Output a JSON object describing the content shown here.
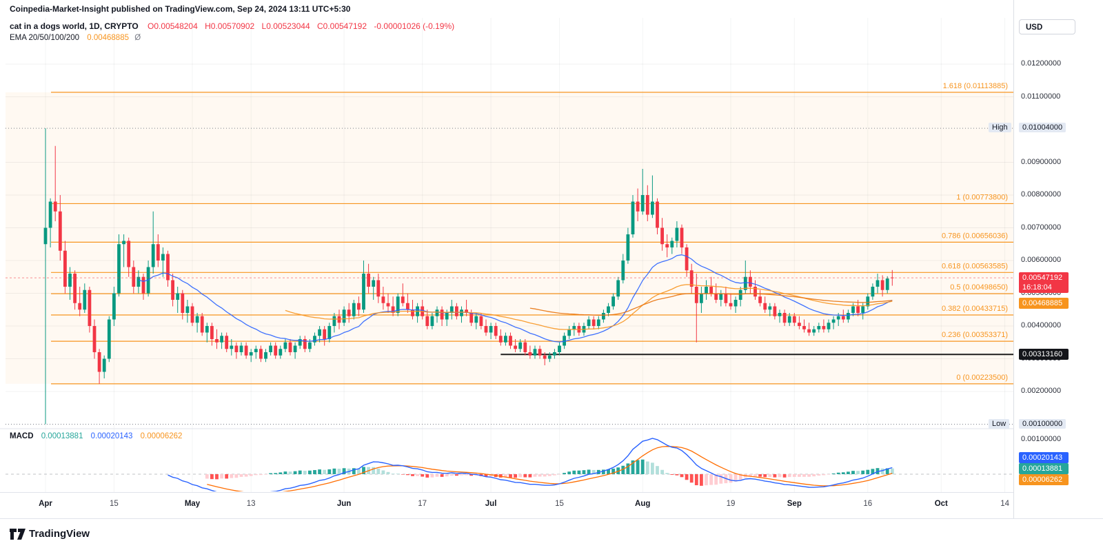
{
  "header": {
    "title": "Coinpedia-Market-Insight published on TradingView.com, Sep 24, 2024 13:11 UTC+5:30"
  },
  "legend": {
    "symbol": "cat in a dogs world, 1D, CRYPTO",
    "ohlc": [
      "O0.00548204",
      "H0.00570902",
      "L0.00523044",
      "C0.00547192"
    ],
    "change": "-0.00001026 (-0.19%)",
    "ema_label": "EMA 20/50/100/200",
    "ema_value": "0.00468885",
    "ema_suffix": "Ø"
  },
  "macd_legend": {
    "label": "MACD",
    "hist": "0.00013881",
    "macd": "0.00020143",
    "signal": "0.00006262"
  },
  "axis": {
    "currency": "USD",
    "y_ticks": [
      {
        "label": "0.01200000",
        "price": 0.012
      },
      {
        "label": "0.01100000",
        "price": 0.011
      },
      {
        "label": "0.00900000",
        "price": 0.009
      },
      {
        "label": "0.00800000",
        "price": 0.008
      },
      {
        "label": "0.00700000",
        "price": 0.007
      },
      {
        "label": "0.00600000",
        "price": 0.006
      },
      {
        "label": "0.00500000",
        "price": 0.005
      },
      {
        "label": "0.00400000",
        "price": 0.004
      },
      {
        "label": "0.00300000",
        "price": 0.003
      },
      {
        "label": "0.00200000",
        "price": 0.002
      }
    ],
    "macd_tick": {
      "label": "0.00100000"
    },
    "high": {
      "label": "High",
      "value": "0.01004000",
      "price": 0.01004
    },
    "low": {
      "label": "Low",
      "value": "0.00100000",
      "price": 0.001
    },
    "badges": {
      "price": {
        "value": "0.00547192",
        "countdown": "16:18:04",
        "color": "#f23645",
        "price": 0.00547192
      },
      "ema": {
        "value": "0.00468885",
        "color": "#f7941e",
        "price": 0.00468885
      },
      "support": {
        "value": "0.00313160",
        "color": "#14151a",
        "price": 0.0031316
      },
      "macd": [
        {
          "value": "0.00020143",
          "color": "#2962ff"
        },
        {
          "value": "0.00013881",
          "color": "#26a69a"
        },
        {
          "value": "0.00006262",
          "color": "#f7941e"
        }
      ]
    }
  },
  "footer": {
    "brand": "TradingView"
  },
  "chart_data": {
    "type": "candlestick",
    "title": "cat in a dogs world, 1D, CRYPTO (CAT/USD)",
    "price_unit": 1e-05,
    "colors": {
      "up": "#089981",
      "down": "#f23645",
      "fib": "#f7941e",
      "fib_fill": "rgba(247,147,30,0.06)",
      "support": "#1c1c1c",
      "price_line": "#f23645",
      "high_low": "#787b86"
    },
    "ohlc": [
      [
        650,
        1004,
        100,
        700
      ],
      [
        700,
        790,
        640,
        780
      ],
      [
        780,
        950,
        720,
        750
      ],
      [
        750,
        800,
        600,
        630
      ],
      [
        630,
        660,
        500,
        520
      ],
      [
        520,
        580,
        480,
        560
      ],
      [
        560,
        570,
        450,
        470
      ],
      [
        470,
        520,
        430,
        450
      ],
      [
        450,
        530,
        440,
        510
      ],
      [
        510,
        520,
        380,
        400
      ],
      [
        400,
        420,
        300,
        320
      ],
      [
        320,
        330,
        223,
        260
      ],
      [
        260,
        310,
        240,
        300
      ],
      [
        300,
        430,
        290,
        420
      ],
      [
        420,
        520,
        400,
        500
      ],
      [
        500,
        680,
        490,
        650
      ],
      [
        650,
        680,
        580,
        660
      ],
      [
        660,
        670,
        550,
        580
      ],
      [
        580,
        600,
        500,
        520
      ],
      [
        520,
        570,
        500,
        550
      ],
      [
        550,
        560,
        480,
        500
      ],
      [
        500,
        600,
        490,
        580
      ],
      [
        580,
        750,
        560,
        650
      ],
      [
        650,
        680,
        580,
        600
      ],
      [
        600,
        640,
        550,
        620
      ],
      [
        620,
        630,
        520,
        540
      ],
      [
        540,
        560,
        460,
        480
      ],
      [
        480,
        520,
        440,
        500
      ],
      [
        500,
        510,
        420,
        440
      ],
      [
        440,
        480,
        410,
        460
      ],
      [
        460,
        470,
        400,
        410
      ],
      [
        410,
        440,
        380,
        430
      ],
      [
        430,
        440,
        370,
        380
      ],
      [
        380,
        410,
        350,
        400
      ],
      [
        400,
        410,
        340,
        360
      ],
      [
        360,
        390,
        330,
        350
      ],
      [
        350,
        380,
        330,
        370
      ],
      [
        370,
        380,
        320,
        330
      ],
      [
        330,
        360,
        310,
        340
      ],
      [
        340,
        350,
        300,
        320
      ],
      [
        320,
        350,
        310,
        340
      ],
      [
        340,
        350,
        300,
        310
      ],
      [
        310,
        330,
        290,
        320
      ],
      [
        320,
        340,
        300,
        330
      ],
      [
        330,
        340,
        290,
        300
      ],
      [
        300,
        330,
        290,
        320
      ],
      [
        320,
        350,
        310,
        340
      ],
      [
        340,
        350,
        300,
        310
      ],
      [
        310,
        340,
        300,
        330
      ],
      [
        330,
        360,
        320,
        350
      ],
      [
        350,
        360,
        310,
        320
      ],
      [
        320,
        350,
        300,
        340
      ],
      [
        340,
        370,
        330,
        360
      ],
      [
        360,
        370,
        320,
        330
      ],
      [
        330,
        360,
        320,
        350
      ],
      [
        350,
        380,
        340,
        370
      ],
      [
        370,
        400,
        350,
        390
      ],
      [
        390,
        400,
        340,
        360
      ],
      [
        360,
        410,
        350,
        400
      ],
      [
        400,
        440,
        380,
        430
      ],
      [
        430,
        450,
        390,
        410
      ],
      [
        410,
        460,
        400,
        450
      ],
      [
        450,
        470,
        410,
        430
      ],
      [
        430,
        480,
        420,
        470
      ],
      [
        470,
        490,
        430,
        450
      ],
      [
        450,
        600,
        440,
        560
      ],
      [
        560,
        590,
        500,
        520
      ],
      [
        520,
        550,
        480,
        540
      ],
      [
        540,
        560,
        470,
        490
      ],
      [
        490,
        520,
        450,
        470
      ],
      [
        470,
        500,
        440,
        460
      ],
      [
        460,
        490,
        430,
        440
      ],
      [
        440,
        500,
        430,
        490
      ],
      [
        490,
        530,
        460,
        470
      ],
      [
        470,
        500,
        440,
        450
      ],
      [
        450,
        480,
        420,
        430
      ],
      [
        430,
        470,
        410,
        460
      ],
      [
        460,
        480,
        420,
        430
      ],
      [
        430,
        450,
        390,
        400
      ],
      [
        400,
        440,
        390,
        430
      ],
      [
        430,
        460,
        410,
        450
      ],
      [
        450,
        460,
        400,
        420
      ],
      [
        420,
        450,
        400,
        440
      ],
      [
        440,
        480,
        420,
        460
      ],
      [
        460,
        470,
        420,
        430
      ],
      [
        430,
        460,
        410,
        450
      ],
      [
        450,
        480,
        430,
        440
      ],
      [
        440,
        450,
        400,
        410
      ],
      [
        410,
        440,
        390,
        430
      ],
      [
        430,
        440,
        390,
        400
      ],
      [
        400,
        420,
        370,
        380
      ],
      [
        380,
        410,
        360,
        400
      ],
      [
        400,
        410,
        360,
        370
      ],
      [
        370,
        390,
        340,
        350
      ],
      [
        350,
        380,
        340,
        370
      ],
      [
        370,
        380,
        330,
        340
      ],
      [
        340,
        360,
        320,
        330
      ],
      [
        330,
        360,
        320,
        350
      ],
      [
        350,
        360,
        310,
        320
      ],
      [
        320,
        340,
        300,
        310
      ],
      [
        310,
        340,
        300,
        330
      ],
      [
        330,
        340,
        300,
        310
      ],
      [
        310,
        320,
        280,
        300
      ],
      [
        300,
        320,
        290,
        310
      ],
      [
        310,
        330,
        300,
        320
      ],
      [
        320,
        350,
        310,
        340
      ],
      [
        340,
        380,
        330,
        370
      ],
      [
        370,
        400,
        360,
        390
      ],
      [
        390,
        410,
        370,
        400
      ],
      [
        400,
        410,
        370,
        380
      ],
      [
        380,
        410,
        370,
        400
      ],
      [
        400,
        430,
        390,
        420
      ],
      [
        420,
        430,
        390,
        400
      ],
      [
        400,
        430,
        390,
        420
      ],
      [
        420,
        450,
        410,
        440
      ],
      [
        440,
        470,
        430,
        460
      ],
      [
        460,
        500,
        450,
        490
      ],
      [
        490,
        550,
        480,
        540
      ],
      [
        540,
        620,
        530,
        600
      ],
      [
        600,
        700,
        590,
        680
      ],
      [
        680,
        800,
        670,
        780
      ],
      [
        780,
        820,
        720,
        750
      ],
      [
        750,
        880,
        740,
        800
      ],
      [
        800,
        830,
        720,
        740
      ],
      [
        740,
        860,
        730,
        780
      ],
      [
        780,
        790,
        680,
        700
      ],
      [
        700,
        730,
        630,
        650
      ],
      [
        650,
        680,
        610,
        640
      ],
      [
        640,
        670,
        620,
        660
      ],
      [
        660,
        720,
        640,
        700
      ],
      [
        700,
        710,
        620,
        640
      ],
      [
        640,
        650,
        550,
        570
      ],
      [
        570,
        590,
        500,
        520
      ],
      [
        520,
        560,
        350,
        470
      ],
      [
        470,
        520,
        440,
        500
      ],
      [
        500,
        540,
        480,
        520
      ],
      [
        520,
        550,
        490,
        500
      ],
      [
        500,
        530,
        470,
        480
      ],
      [
        480,
        510,
        460,
        500
      ],
      [
        500,
        520,
        460,
        470
      ],
      [
        470,
        500,
        450,
        460
      ],
      [
        460,
        490,
        440,
        480
      ],
      [
        480,
        520,
        460,
        510
      ],
      [
        510,
        600,
        500,
        550
      ],
      [
        550,
        570,
        500,
        520
      ],
      [
        520,
        540,
        480,
        490
      ],
      [
        490,
        510,
        460,
        470
      ],
      [
        470,
        490,
        440,
        450
      ],
      [
        450,
        470,
        430,
        460
      ],
      [
        460,
        470,
        420,
        430
      ],
      [
        430,
        450,
        410,
        440
      ],
      [
        440,
        450,
        400,
        410
      ],
      [
        410,
        440,
        400,
        430
      ],
      [
        430,
        440,
        400,
        410
      ],
      [
        410,
        430,
        390,
        400
      ],
      [
        400,
        420,
        380,
        390
      ],
      [
        390,
        410,
        370,
        380
      ],
      [
        380,
        400,
        370,
        390
      ],
      [
        390,
        410,
        380,
        400
      ],
      [
        400,
        420,
        380,
        390
      ],
      [
        390,
        420,
        380,
        410
      ],
      [
        410,
        430,
        390,
        420
      ],
      [
        420,
        440,
        400,
        430
      ],
      [
        430,
        450,
        410,
        420
      ],
      [
        420,
        450,
        410,
        440
      ],
      [
        440,
        470,
        430,
        460
      ],
      [
        460,
        480,
        430,
        440
      ],
      [
        440,
        470,
        420,
        460
      ],
      [
        460,
        500,
        450,
        490
      ],
      [
        490,
        530,
        480,
        520
      ],
      [
        520,
        560,
        500,
        540
      ],
      [
        540,
        555,
        490,
        510
      ],
      [
        510,
        552,
        500,
        545
      ],
      [
        548.204,
        570.902,
        523.044,
        547.192
      ]
    ],
    "x_ticks": [
      {
        "label": "Apr",
        "index": 0,
        "major": true
      },
      {
        "label": "15",
        "index": 14,
        "major": false
      },
      {
        "label": "May",
        "index": 30,
        "major": true
      },
      {
        "label": "13",
        "index": 42,
        "major": false
      },
      {
        "label": "Jun",
        "index": 61,
        "major": true
      },
      {
        "label": "17",
        "index": 77,
        "major": false
      },
      {
        "label": "Jul",
        "index": 91,
        "major": true
      },
      {
        "label": "15",
        "index": 105,
        "major": false
      },
      {
        "label": "Aug",
        "index": 122,
        "major": true
      },
      {
        "label": "19",
        "index": 140,
        "major": false
      },
      {
        "label": "Sep",
        "index": 153,
        "major": true
      },
      {
        "label": "16",
        "index": 168,
        "major": false
      },
      {
        "label": "Oct",
        "index": 183,
        "major": true
      },
      {
        "label": "14",
        "index": 196,
        "major": false
      }
    ],
    "fib_levels": [
      {
        "label": "1.618 (0.01113885)",
        "price": 0.01113885
      },
      {
        "label": "1 (0.00773800)",
        "price": 0.007738
      },
      {
        "label": "0.786 (0.00656036)",
        "price": 0.00656036
      },
      {
        "label": "0.618 (0.00563585)",
        "price": 0.00563585
      },
      {
        "label": "0.5 (0.00498650)",
        "price": 0.0049865
      },
      {
        "label": "0.382 (0.00433715)",
        "price": 0.00433715
      },
      {
        "label": "0.236 (0.00353371)",
        "price": 0.00353371
      },
      {
        "label": "0 (0.00223500)",
        "price": 0.002235
      }
    ],
    "support_line": {
      "price": 0.0031316,
      "start_index": 93
    },
    "price_line": 0.00547192,
    "high_line": 0.01004,
    "low_line": 0.001,
    "emas": [
      {
        "period": 20,
        "color": "#2962ff"
      },
      {
        "period": 50,
        "color": "#f7941e"
      },
      {
        "period": 100,
        "color": "#e8710a"
      },
      {
        "period": 200,
        "color": "#ad2f33"
      }
    ],
    "macd": {
      "fast": 12,
      "slow": 26,
      "smoothing": 9,
      "line_color": "#2962ff",
      "signal_color": "#ff6d00",
      "hist_colors": [
        "#26a69a",
        "#b2dfdb",
        "#ffcdd2",
        "#ff5252"
      ]
    }
  }
}
